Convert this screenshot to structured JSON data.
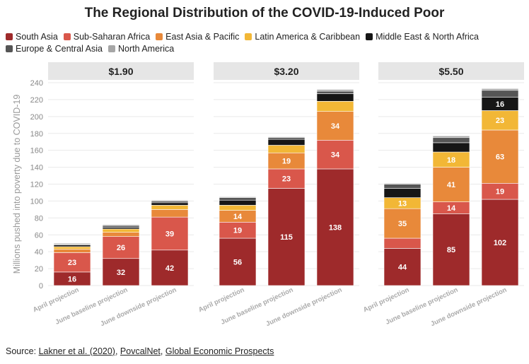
{
  "title": "The Regional Distribution of the COVID-19-Induced Poor",
  "source": {
    "prefix": "Source: ",
    "links": [
      "Lakner et al. (2020)",
      "PovcalNet",
      "Global Economic Prospects"
    ],
    "sep": ", "
  },
  "chart_data": {
    "type": "bar",
    "stacked": true,
    "ylabel": "Millions pushed into poverty due to COVID-19",
    "ylim": [
      0,
      240
    ],
    "yticks": [
      0,
      20,
      40,
      60,
      80,
      100,
      120,
      140,
      160,
      180,
      200,
      220,
      240
    ],
    "grid": true,
    "legend_position": "top",
    "categories": [
      "April projection",
      "June baseline projection",
      "June downside projection"
    ],
    "panels": [
      {
        "title": "$1.90",
        "series": [
          {
            "name": "South Asia",
            "color": "#9e2a2b",
            "values": [
              16,
              32,
              42
            ]
          },
          {
            "name": "Sub-Saharan Africa",
            "color": "#d9574b",
            "values": [
              23,
              26,
              39
            ]
          },
          {
            "name": "East Asia & Pacific",
            "color": "#e8893a",
            "values": [
              4,
              5,
              9
            ]
          },
          {
            "name": "Latin America & Caribbean",
            "color": "#f2b736",
            "values": [
              3,
              4,
              5
            ]
          },
          {
            "name": "Middle East & North Africa",
            "color": "#161616",
            "values": [
              2,
              2,
              3
            ]
          },
          {
            "name": "Europe & Central Asia",
            "color": "#555555",
            "values": [
              1,
              2,
              2
            ]
          },
          {
            "name": "North America",
            "color": "#a6a6a6",
            "values": [
              1,
              1,
              1
            ]
          }
        ],
        "labels": [
          [
            16,
            32,
            42
          ],
          [
            23,
            26,
            39
          ],
          [
            null,
            null,
            null
          ],
          [
            null,
            null,
            null
          ],
          [
            null,
            null,
            null
          ],
          [
            null,
            null,
            null
          ],
          [
            null,
            null,
            null
          ]
        ]
      },
      {
        "title": "$3.20",
        "series": [
          {
            "name": "South Asia",
            "color": "#9e2a2b",
            "values": [
              56,
              115,
              138
            ]
          },
          {
            "name": "Sub-Saharan Africa",
            "color": "#d9574b",
            "values": [
              19,
              23,
              34
            ]
          },
          {
            "name": "East Asia & Pacific",
            "color": "#e8893a",
            "values": [
              14,
              19,
              34
            ]
          },
          {
            "name": "Latin America & Caribbean",
            "color": "#f2b736",
            "values": [
              6,
              9,
              12
            ]
          },
          {
            "name": "Middle East & North Africa",
            "color": "#161616",
            "values": [
              6,
              7,
              9
            ]
          },
          {
            "name": "Europe & Central Asia",
            "color": "#555555",
            "values": [
              3,
              2,
              3
            ]
          },
          {
            "name": "North America",
            "color": "#a6a6a6",
            "values": [
              1,
              1,
              2
            ]
          }
        ],
        "labels": [
          [
            56,
            115,
            138
          ],
          [
            19,
            23,
            34
          ],
          [
            14,
            19,
            34
          ],
          [
            null,
            null,
            null
          ],
          [
            null,
            null,
            null
          ],
          [
            null,
            null,
            null
          ],
          [
            null,
            null,
            null
          ]
        ]
      },
      {
        "title": "$5.50",
        "series": [
          {
            "name": "South Asia",
            "color": "#9e2a2b",
            "values": [
              44,
              85,
              102
            ]
          },
          {
            "name": "Sub-Saharan Africa",
            "color": "#d9574b",
            "values": [
              12,
              14,
              19
            ]
          },
          {
            "name": "East Asia & Pacific",
            "color": "#e8893a",
            "values": [
              35,
              41,
              63
            ]
          },
          {
            "name": "Latin America & Caribbean",
            "color": "#f2b736",
            "values": [
              13,
              18,
              23
            ]
          },
          {
            "name": "Middle East & North Africa",
            "color": "#161616",
            "values": [
              11,
              11,
              16
            ]
          },
          {
            "name": "Europe & Central Asia",
            "color": "#555555",
            "values": [
              5,
              6,
              8
            ]
          },
          {
            "name": "North America",
            "color": "#a6a6a6",
            "values": [
              1,
              2,
              2
            ]
          }
        ],
        "labels": [
          [
            44,
            85,
            102
          ],
          [
            null,
            14,
            19
          ],
          [
            35,
            41,
            63
          ],
          [
            13,
            18,
            23
          ],
          [
            null,
            null,
            16
          ],
          [
            null,
            null,
            null
          ],
          [
            null,
            null,
            null
          ]
        ]
      }
    ]
  }
}
